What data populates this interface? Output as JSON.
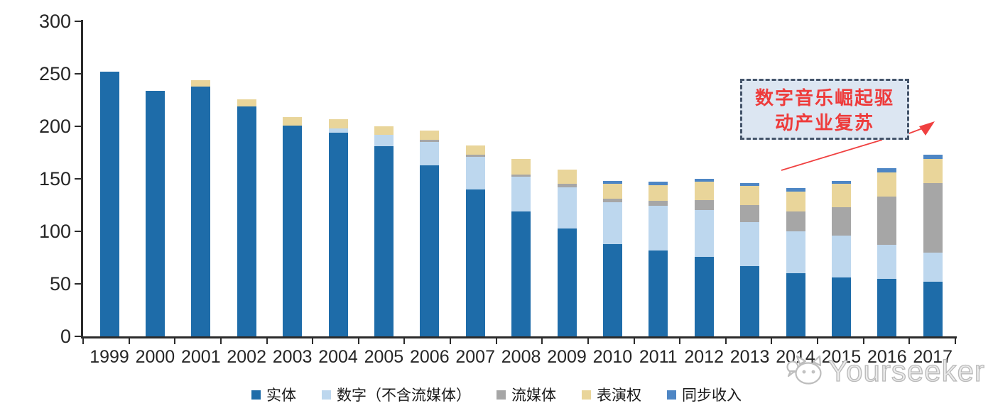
{
  "chart_data": {
    "type": "bar",
    "stacked": true,
    "title": "",
    "xlabel": "",
    "ylabel": "",
    "categories": [
      "1999",
      "2000",
      "2001",
      "2002",
      "2003",
      "2004",
      "2005",
      "2006",
      "2007",
      "2008",
      "2009",
      "2010",
      "2011",
      "2012",
      "2013",
      "2014",
      "2015",
      "2016",
      "2017"
    ],
    "series": [
      {
        "name": "实体",
        "color": "#1E6CA9",
        "values": [
          252,
          234,
          238,
          219,
          201,
          194,
          181,
          163,
          140,
          119,
          103,
          88,
          82,
          76,
          67,
          60,
          56,
          55,
          52
        ]
      },
      {
        "name": "数字（不含流媒体）",
        "color": "#BDD7EE",
        "values": [
          0,
          0,
          0,
          0,
          0,
          4,
          11,
          22,
          31,
          33,
          39,
          40,
          42,
          44,
          42,
          40,
          40,
          32,
          28
        ]
      },
      {
        "name": "流媒体",
        "color": "#A6A6A6",
        "values": [
          0,
          0,
          0,
          0,
          0,
          0,
          0,
          2,
          2,
          2,
          3,
          3,
          5,
          10,
          16,
          19,
          27,
          46,
          66
        ]
      },
      {
        "name": "表演权",
        "color": "#E9D59A",
        "values": [
          0,
          0,
          6,
          7,
          8,
          9,
          8,
          9,
          9,
          15,
          14,
          14,
          15,
          17,
          18,
          19,
          22,
          23,
          23
        ]
      },
      {
        "name": "同步收入",
        "color": "#4E86C4",
        "values": [
          0,
          0,
          0,
          0,
          0,
          0,
          0,
          0,
          0,
          0,
          0,
          3,
          3,
          3,
          3,
          3,
          3,
          4,
          4
        ]
      }
    ],
    "totals": [
      252,
      234,
      244,
      226,
      209,
      207,
      200,
      196,
      182,
      169,
      159,
      148,
      147,
      150,
      146,
      141,
      148,
      160,
      173
    ],
    "ylim": [
      0,
      300
    ],
    "yticks": [
      0,
      50,
      100,
      150,
      200,
      250,
      300
    ],
    "grid": false,
    "legend_position": "bottom"
  },
  "annotation": {
    "line1": "数字音乐崛起驱",
    "line2": "动产业复苏"
  },
  "watermark": {
    "text": "Yourseeker"
  },
  "icons": {
    "watermark_logo": "cat-face-with-speech-bubble"
  },
  "colors": {
    "axis": "#2b2b2b",
    "annotation_text": "#EE3B3B",
    "annotation_box_fill": "#DCE6F2",
    "annotation_border": "#44546A",
    "arrow": "#F04040",
    "watermark": "#B9B9B9"
  }
}
